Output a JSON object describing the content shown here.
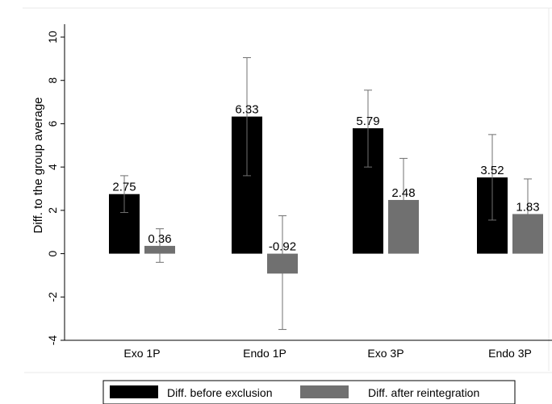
{
  "chart_data": {
    "type": "bar",
    "ylabel": "Diff. to the group average",
    "xlabel": "",
    "ylim": [
      -4,
      10
    ],
    "yticks": [
      -4,
      -2,
      0,
      2,
      4,
      6,
      8,
      10
    ],
    "ytick_labels": [
      "-4",
      "-2",
      "0",
      "2",
      "4",
      "6",
      "8",
      "10"
    ],
    "categories": [
      "Exo 1P",
      "Endo 1P",
      "Exo 3P",
      "Endo 3P"
    ],
    "series": [
      {
        "name": "Diff. before exclusion",
        "color": "#000000",
        "values": [
          2.75,
          6.33,
          5.79,
          3.52
        ],
        "value_labels": [
          "2.75",
          "6.33",
          "5.79",
          "3.52"
        ],
        "error_low": [
          1.9,
          3.6,
          4.0,
          1.55
        ],
        "error_high": [
          3.6,
          9.05,
          7.55,
          5.5
        ]
      },
      {
        "name": "Diff. after reintegration",
        "color": "#707070",
        "values": [
          0.36,
          -0.92,
          2.48,
          1.83
        ],
        "value_labels": [
          "0.36",
          "-0.92",
          "2.48",
          "1.83"
        ],
        "error_low": [
          -0.4,
          -3.5,
          0.65,
          0.25
        ],
        "error_high": [
          1.15,
          1.75,
          4.4,
          3.45
        ]
      }
    ],
    "error_bar_color": "#707070",
    "grid": false,
    "legend_position": "bottom"
  }
}
